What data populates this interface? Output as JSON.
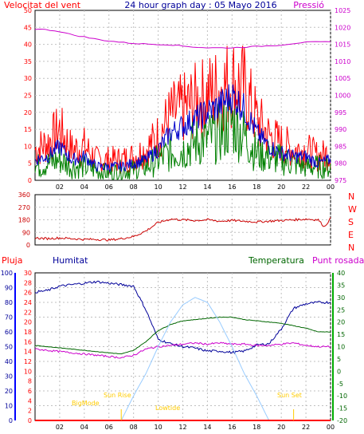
{
  "header": {
    "left_title": "Velocitat del vent",
    "center_title": "24 hour graph day : 05 Mayo 2016",
    "right_title": "Pressió"
  },
  "colors": {
    "wind_speed": "#ff0000",
    "wind_avg": "#0000cc",
    "wind_green": "#008000",
    "pressure": "#cc00cc",
    "direction": "#cc0000",
    "humidity": "#000099",
    "temperature": "#006600",
    "dewpoint": "#cc00cc",
    "rain": "#ff0000",
    "solar": "#99ccff",
    "sun_labels": "#ffcc00",
    "grid": "#c0c0c0",
    "frame": "#000000"
  },
  "x_ticks": [
    "02",
    "04",
    "06",
    "08",
    "10",
    "12",
    "14",
    "16",
    "18",
    "20",
    "22",
    "00"
  ],
  "chart_data": [
    {
      "type": "line",
      "panel": "wind_pressure",
      "title": "24 hour graph day : 05 Mayo 2016",
      "ylabel_left": "Velocitat del vent",
      "ylabel_right": "Pressió",
      "ylim_left": [
        0,
        50
      ],
      "ylim_right": [
        975,
        1025
      ],
      "yticks_left": [
        "0",
        "5",
        "10",
        "15",
        "20",
        "25",
        "30",
        "35",
        "40",
        "45",
        "50"
      ],
      "yticks_right": [
        "975",
        "980",
        "985",
        "990",
        "995",
        "1000",
        "1005",
        "1010",
        "1015",
        "1020",
        "1025"
      ],
      "x": [
        0,
        1,
        2,
        3,
        4,
        5,
        6,
        7,
        8,
        9,
        10,
        11,
        12,
        13,
        14,
        15,
        16,
        17,
        18,
        19,
        20,
        21,
        22,
        23,
        24
      ],
      "series": [
        {
          "axis": "left",
          "color_key": "wind_speed",
          "values": [
            9,
            11,
            15,
            9,
            10,
            6,
            6,
            6,
            7,
            9,
            13,
            19,
            21,
            23,
            25,
            27,
            29,
            27,
            18,
            13,
            11,
            9,
            9,
            7,
            8
          ]
        },
        {
          "axis": "left",
          "color_key": "wind_avg",
          "values": [
            6,
            7,
            10,
            6,
            7,
            4,
            4,
            4,
            5,
            6,
            9,
            14,
            16,
            18,
            20,
            22,
            25,
            21,
            14,
            10,
            8,
            7,
            7,
            5,
            6
          ]
        },
        {
          "axis": "left",
          "color_key": "wind_green",
          "values": [
            4,
            5,
            6,
            4,
            4,
            3,
            2,
            3,
            3,
            4,
            6,
            8,
            9,
            11,
            12,
            14,
            17,
            13,
            8,
            7,
            6,
            5,
            4,
            4,
            4
          ]
        },
        {
          "axis": "right",
          "color_key": "pressure",
          "values": [
            1019.5,
            1019.3,
            1018.8,
            1017.8,
            1017.2,
            1016.5,
            1016.0,
            1015.6,
            1015.3,
            1015.1,
            1015.0,
            1014.9,
            1014.5,
            1014.2,
            1014.0,
            1014.0,
            1014.0,
            1014.2,
            1014.4,
            1014.6,
            1014.8,
            1015.3,
            1015.6,
            1015.7,
            1015.7
          ]
        }
      ]
    },
    {
      "type": "line",
      "panel": "wind_direction",
      "ylim": [
        0,
        360
      ],
      "yticks": [
        "0",
        "90",
        "180",
        "270",
        "360"
      ],
      "compass_labels": [
        "N",
        "W",
        "S",
        "E",
        "N"
      ],
      "x": [
        0,
        1,
        2,
        3,
        4,
        5,
        6,
        7,
        8,
        9,
        10,
        11,
        12,
        13,
        14,
        15,
        16,
        17,
        18,
        19,
        20,
        21,
        22,
        23,
        23.5,
        24
      ],
      "series": [
        {
          "color_key": "direction",
          "values": [
            50,
            45,
            50,
            45,
            40,
            40,
            35,
            45,
            60,
            100,
            160,
            185,
            180,
            175,
            180,
            170,
            175,
            170,
            165,
            170,
            175,
            180,
            185,
            180,
            130,
            190
          ]
        }
      ]
    },
    {
      "type": "line",
      "panel": "humidity_temperature",
      "legend": [
        "Pluja",
        "Humitat",
        "Temperatura",
        "Punt rosada"
      ],
      "ylim_humidity": [
        0,
        100
      ],
      "yticks_humidity": [
        "0",
        "10",
        "20",
        "30",
        "40",
        "50",
        "60",
        "70",
        "80",
        "90",
        "100"
      ],
      "ylim_rain": [
        0,
        30
      ],
      "yticks_rain": [
        "0",
        "2",
        "4",
        "6",
        "8",
        "10",
        "12",
        "14",
        "16",
        "18",
        "20",
        "22",
        "24",
        "26",
        "28",
        "30"
      ],
      "ylim_temperature": [
        -20,
        40
      ],
      "yticks_temperature": [
        "-20",
        "-15",
        "-10",
        "-5",
        "0",
        "5",
        "10",
        "15",
        "20",
        "25",
        "30",
        "35",
        "40"
      ],
      "annotations": [
        "BigMode",
        "Sun Rise",
        "Lowtide",
        "Sun Set"
      ],
      "x": [
        0,
        1,
        2,
        3,
        4,
        5,
        6,
        7,
        8,
        9,
        10,
        11,
        12,
        13,
        14,
        15,
        16,
        17,
        18,
        19,
        20,
        21,
        22,
        23,
        24
      ],
      "series": [
        {
          "color_key": "humidity",
          "axis": "humidity",
          "values": [
            87,
            88,
            91,
            92,
            93,
            94,
            93,
            92,
            91,
            75,
            55,
            52,
            50,
            49,
            47,
            47,
            46,
            47,
            51,
            52,
            62,
            76,
            79,
            80,
            80
          ]
        },
        {
          "color_key": "temperature",
          "axis": "temperature",
          "values": [
            10.5,
            10.0,
            9.5,
            9.0,
            8.5,
            8.0,
            7.5,
            7.0,
            8.5,
            12.0,
            16.5,
            19.0,
            20.5,
            21.0,
            21.5,
            22.0,
            22.0,
            21.0,
            20.5,
            20.0,
            19.5,
            18.5,
            17.5,
            16.0,
            16.0
          ]
        },
        {
          "color_key": "dewpoint",
          "axis": "temperature",
          "values": [
            9.0,
            8.5,
            8.0,
            7.5,
            7.0,
            6.5,
            6.0,
            5.5,
            6.5,
            9.0,
            10.0,
            10.5,
            11.0,
            11.5,
            11.0,
            11.5,
            11.0,
            11.0,
            10.5,
            10.5,
            11.0,
            11.5,
            10.5,
            10.0,
            10.0
          ]
        },
        {
          "color_key": "solar",
          "axis": "temperature",
          "values": [
            -20,
            -20,
            -20,
            -20,
            -20,
            -20,
            -20,
            -20,
            -10,
            -1,
            10,
            20,
            27,
            30,
            28,
            20,
            10,
            -1,
            -10,
            -20,
            -20,
            -20,
            -20,
            -20,
            -20
          ]
        },
        {
          "color_key": "rain",
          "axis": "rain",
          "values": [
            0,
            0,
            0,
            0,
            0,
            0,
            0,
            0,
            0,
            0,
            0,
            0,
            0,
            0,
            0,
            0,
            0,
            0,
            0,
            0,
            0,
            0,
            0,
            0,
            0
          ]
        }
      ]
    }
  ]
}
